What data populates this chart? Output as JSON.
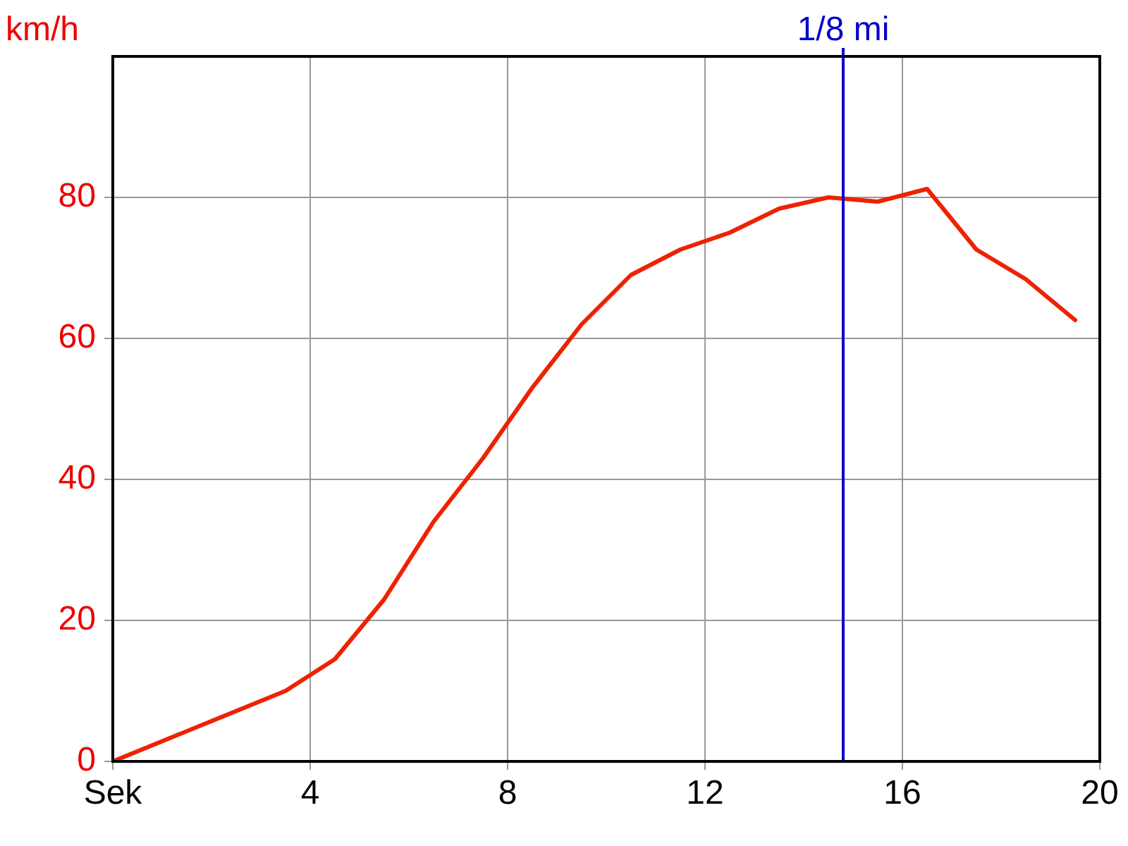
{
  "chart_data": {
    "type": "line",
    "ylabel": "km/h",
    "x": [
      0,
      3.5,
      4.5,
      5.5,
      6.5,
      7.5,
      8.5,
      9.5,
      10.5,
      11.5,
      12.5,
      13.5,
      14.5,
      15.5,
      16.5,
      17.5,
      18.5,
      19.5
    ],
    "series": [
      {
        "color": "#ee2200",
        "values": [
          0,
          10,
          14.5,
          23,
          34,
          43,
          53,
          62,
          69,
          72.6,
          75,
          78.4,
          80,
          79.4,
          81.2,
          72.6,
          68.4,
          62.6
        ]
      }
    ],
    "xlim": [
      0,
      20
    ],
    "xticks": [
      {
        "value": 0,
        "label": "Sek"
      },
      4,
      8,
      12,
      16,
      20
    ],
    "ylim": [
      0,
      100
    ],
    "yticks": [
      0,
      20,
      40,
      60,
      80
    ],
    "ref_lines": [
      {
        "axis": "x",
        "value": 14.8,
        "label": "1/8 mi",
        "color": "#0000cc"
      }
    ],
    "grid": true,
    "legend": false,
    "marker": "none",
    "line_style": "solid"
  }
}
